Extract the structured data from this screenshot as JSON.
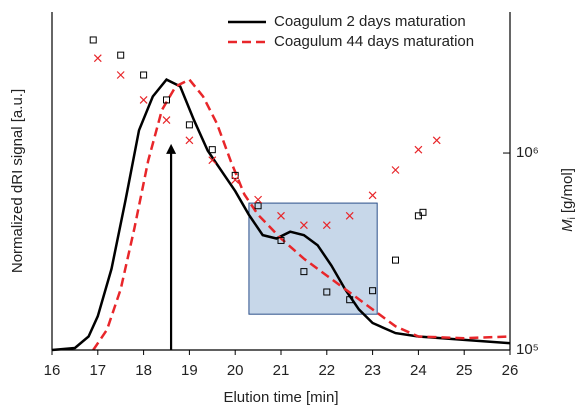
{
  "chart_data": {
    "type": "line",
    "xlabel": "Elution time [min]",
    "ylabel": "Normalized dRI signal [a.u.]",
    "y2label": {
      "symbol": "M",
      "subscript": "i",
      "unit": "[g/mol]"
    },
    "xlim": [
      16,
      26
    ],
    "xticks": [
      16,
      17,
      18,
      19,
      20,
      21,
      22,
      23,
      24,
      25,
      26
    ],
    "ylim": [
      0,
      1
    ],
    "y2lim": [
      100000,
      5200000
    ],
    "y2log": true,
    "y2ticks": [
      {
        "value": 100000,
        "label": "10⁵"
      },
      {
        "value": 1000000,
        "label": "10⁶"
      }
    ],
    "legend": "top-right",
    "series": [
      {
        "name": "Coagulum 2 days maturation",
        "color": "#000000",
        "dash": false,
        "x": [
          16,
          16.5,
          16.8,
          17,
          17.3,
          17.6,
          17.9,
          18.2,
          18.5,
          18.8,
          19.1,
          19.4,
          19.7,
          20,
          20.3,
          20.6,
          20.9,
          21.2,
          21.5,
          21.8,
          22.1,
          22.4,
          22.7,
          23,
          23.5,
          24,
          25,
          26
        ],
        "values": [
          0,
          0.006,
          0.04,
          0.1,
          0.24,
          0.44,
          0.65,
          0.75,
          0.8,
          0.78,
          0.68,
          0.59,
          0.53,
          0.47,
          0.4,
          0.34,
          0.33,
          0.35,
          0.34,
          0.31,
          0.25,
          0.18,
          0.12,
          0.08,
          0.05,
          0.04,
          0.03,
          0.02
        ]
      },
      {
        "name": "Coagulum 44 days maturation",
        "color": "#e8262a",
        "dash": true,
        "x": [
          16.9,
          17.2,
          17.5,
          17.8,
          18.1,
          18.4,
          18.7,
          19,
          19.3,
          19.6,
          19.9,
          20.2,
          20.5,
          21,
          21.5,
          22,
          22.5,
          23,
          23.5,
          24,
          25,
          26
        ],
        "values": [
          0,
          0.06,
          0.18,
          0.36,
          0.56,
          0.71,
          0.78,
          0.8,
          0.75,
          0.67,
          0.56,
          0.46,
          0.4,
          0.33,
          0.27,
          0.22,
          0.17,
          0.12,
          0.07,
          0.04,
          0.035,
          0.04
        ]
      },
      {
        "color": "#000000",
        "marker": "square",
        "axis": "y2",
        "x": [
          16.9,
          17.5,
          18,
          18.5,
          19,
          19.5,
          20,
          20.5,
          21,
          21.5,
          22,
          22.5,
          23,
          23.5,
          24,
          24.1
        ],
        "values": [
          3750000,
          3140000,
          2490000,
          1860000,
          1390000,
          1040000,
          770000,
          540000,
          360000,
          250000,
          197000,
          180000,
          200000,
          286000,
          480000,
          500000
        ]
      },
      {
        "color": "#e8262a",
        "marker": "x",
        "axis": "y2",
        "x": [
          17,
          17.5,
          18,
          18.5,
          19,
          19.5,
          20,
          20.5,
          21,
          21.5,
          22,
          22.5,
          23,
          23.5,
          24,
          24.4
        ],
        "values": [
          3030000,
          2490000,
          1860000,
          1470000,
          1160000,
          920000,
          730000,
          580000,
          480000,
          430000,
          430000,
          480000,
          610000,
          820000,
          1040000,
          1160000
        ]
      }
    ],
    "arrow": {
      "x": 18.6,
      "y": 0.61
    },
    "box": {
      "x": [
        20.3,
        23.1
      ],
      "y2": [
        152000,
        557000
      ],
      "color": "#b9cde4"
    }
  }
}
